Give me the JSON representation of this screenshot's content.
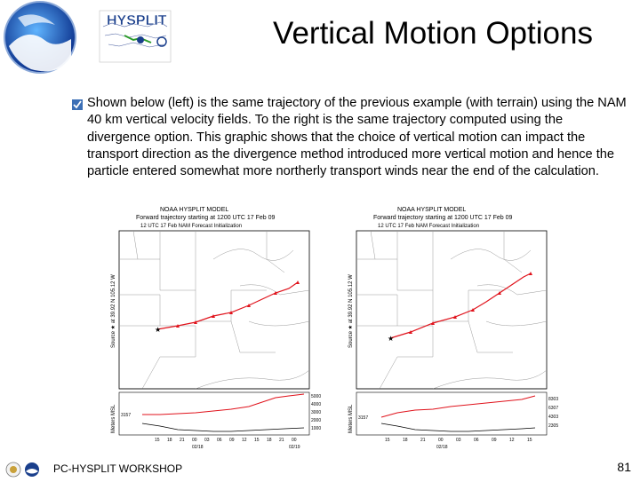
{
  "header": {
    "logo_text": "HYSPLIT",
    "title": "Vertical Motion Options"
  },
  "body": {
    "paragraph": "Shown below (left) is the same trajectory of the previous example (with terrain) using the NAM 40 km vertical velocity fields.  To the right is the same trajectory computed using the divergence option. This graphic shows that the choice of vertical motion can impact the transport direction as the divergence method introduced more vertical motion and hence the particle entered somewhat more northerly transport winds near the end of the calculation."
  },
  "figures": [
    {
      "model": "NOAA HYSPLIT MODEL",
      "line1": "Forward trajectory starting at 1200 UTC 17 Feb 09",
      "line2": "12 UTC 17 Feb    NAM  Forecast Initialization",
      "source_label": "Source ★ at   39.92 N  105.12 W",
      "ylabel": "Meters MSL",
      "y_ticks": [
        "5000",
        "4000",
        "3000",
        "2000",
        "1000"
      ],
      "x_ticks": [
        "15",
        "18",
        "21",
        "00",
        "03",
        "06",
        "09",
        "12",
        "15",
        "18",
        "21",
        "00"
      ],
      "date_labels": [
        "02/18",
        "02/19"
      ],
      "start_height": "3157"
    },
    {
      "model": "NOAA HYSPLIT MODEL",
      "line1": "Forward trajectory starting at 1200 UTC 17 Feb 09",
      "line2": "12 UTC 17 Feb    NAM  Forecast Initialization",
      "source_label": "Source ★ at   39.92 N  105.12 W",
      "ylabel": "Meters MSL",
      "y_ticks": [
        "8303",
        "6307",
        "4303",
        "2305"
      ],
      "x_ticks": [
        "15",
        "18",
        "21",
        "00",
        "03",
        "06",
        "09",
        "12",
        "15"
      ],
      "date_labels": [
        "02/18"
      ],
      "start_height": "3157"
    }
  ],
  "footer": {
    "text": "PC-HYSPLIT WORKSHOP",
    "page": "81"
  },
  "colors": {
    "trajectory": "#e0121b",
    "map_lines": "#9a9a9a",
    "logo_blue": "#1a3f8c"
  }
}
